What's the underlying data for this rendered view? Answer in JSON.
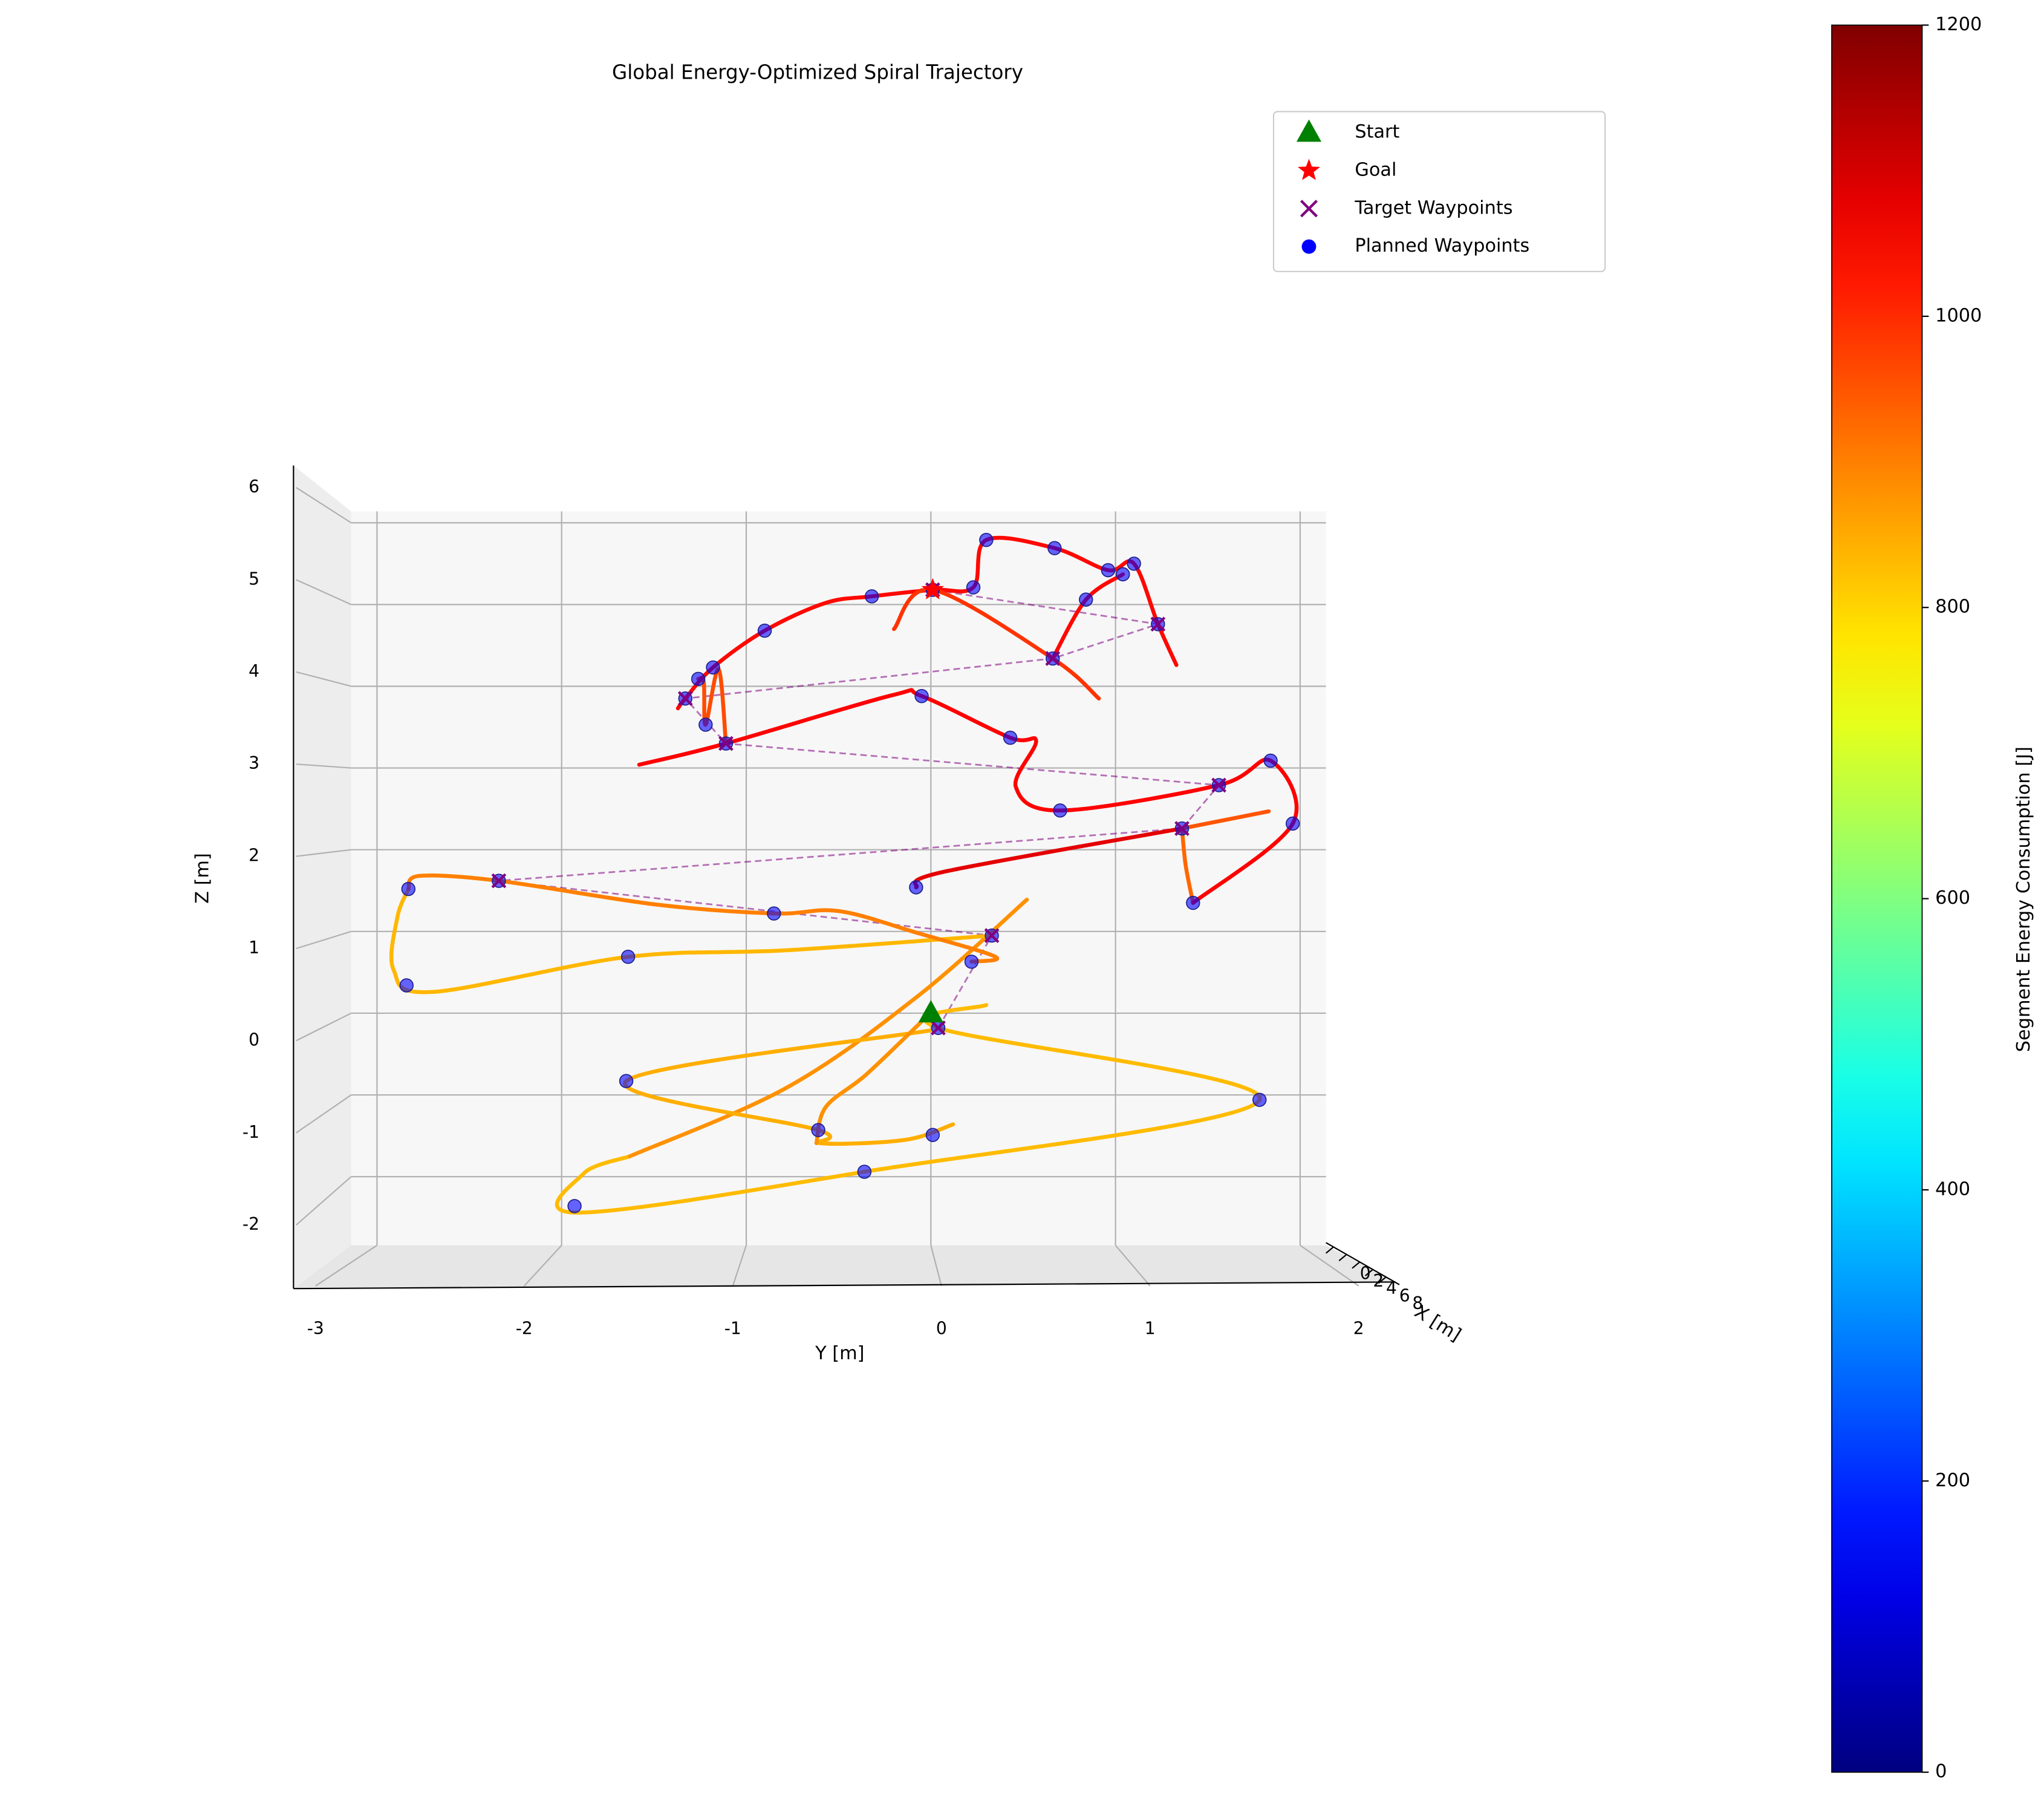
{
  "chart_data": {
    "type": "line3d",
    "title": "Global Energy-Optimized Spiral Trajectory",
    "xlabel": "X [m]",
    "ylabel": "Y [m]",
    "zlabel": "Z [m]",
    "xlim": [
      0,
      8
    ],
    "xticks": [
      0,
      2,
      4,
      6,
      8
    ],
    "ylim": [
      -3.14,
      2.14
    ],
    "yticks": [
      -3,
      -2,
      -1,
      0,
      1,
      2
    ],
    "zlim": [
      -2.84,
      6.14
    ],
    "zticks": [
      -2,
      -1,
      0,
      1,
      2,
      3,
      4,
      5,
      6
    ],
    "grid": true,
    "legend": "upper right",
    "colorbar": {
      "label": "Segment Energy Consumption [J]",
      "colormap": "jet",
      "lim": [
        0,
        1200
      ],
      "ticks": [
        0,
        200,
        400,
        600,
        800,
        1000,
        1200
      ]
    },
    "trajectory": [
      {
        "energy": 830,
        "y": [
          0.3,
          0.04,
          1.78,
          -0.36,
          -1.91,
          -1.88,
          -1.63
        ],
        "z": [
          0.1,
          -0.18,
          -1.06,
          -1.94,
          -2.44,
          -1.96,
          -1.75
        ]
      },
      {
        "energy": 880,
        "y": [
          -1.63,
          -0.78,
          -0.07,
          0.52
        ],
        "z": [
          -1.75,
          -0.91,
          0.21,
          1.39
        ]
      },
      {
        "energy": 845,
        "y": [
          0.12,
          -0.14,
          -0.6,
          -0.61,
          -1.65,
          0.0
        ],
        "z": [
          -1.36,
          -1.55,
          -1.59,
          -1.43,
          -0.83,
          -0.21
        ]
      },
      {
        "energy": 880,
        "y": [
          -0.04,
          -0.35,
          -0.57,
          -0.62
        ],
        "z": [
          -0.08,
          -0.75,
          -1.15,
          -1.59
        ]
      },
      {
        "energy": 835,
        "y": [
          0.33,
          -0.78,
          -1.64,
          -2.7,
          -2.91,
          -2.89,
          -2.83
        ],
        "z": [
          0.95,
          0.77,
          0.69,
          0.26,
          0.53,
          1.17,
          1.52
        ]
      },
      {
        "energy": 900,
        "y": [
          -2.83,
          -2.77,
          -2.34,
          -1.49,
          -0.85,
          -0.5,
          -0.07,
          0.35,
          0.22
        ],
        "z": [
          1.52,
          1.68,
          1.62,
          1.33,
          1.22,
          1.25,
          0.98,
          0.69,
          0.63
        ]
      },
      {
        "energy": 1080,
        "y": [
          -0.08,
          0.07,
          1.36
        ],
        "z": [
          1.54,
          1.73,
          2.26
        ]
      },
      {
        "energy": 950,
        "y": [
          1.36,
          1.83
        ],
        "z": [
          2.26,
          2.47
        ]
      },
      {
        "energy": 930,
        "y": [
          1.36,
          1.38,
          1.42
        ],
        "z": [
          2.26,
          1.81,
          1.35
        ]
      },
      {
        "energy": 1050,
        "y": [
          1.42,
          1.96,
          1.84,
          1.56,
          0.7,
          0.46,
          0.57,
          0.43,
          -0.05,
          -0.21,
          -1.11,
          -1.58
        ],
        "z": [
          1.35,
          2.32,
          3.09,
          2.79,
          2.48,
          2.77,
          3.33,
          3.37,
          3.88,
          3.89,
          3.3,
          3.04
        ]
      },
      {
        "energy": 960,
        "y": [
          -1.11,
          -1.15,
          -1.22,
          -1.23,
          -1.26
        ],
        "z": [
          3.3,
          4.21,
          3.53,
          4.05,
          4.09
        ]
      },
      {
        "energy": 1040,
        "y": [
          -1.37,
          -1.33,
          -1.18,
          -0.9,
          -0.57,
          -0.32,
          0.01,
          0.23,
          0.3,
          0.67,
          0.96,
          1.1,
          1.23,
          1.33
        ],
        "z": [
          3.73,
          3.85,
          4.23,
          4.68,
          5.02,
          5.1,
          5.18,
          5.21,
          5.79,
          5.69,
          5.42,
          5.5,
          4.76,
          4.26
        ]
      },
      {
        "energy": 990,
        "y": [
          -0.2,
          0.01,
          0.66,
          0.91
        ],
        "z": [
          4.7,
          5.18,
          4.34,
          3.85
        ]
      },
      {
        "energy": 1040,
        "y": [
          0.66,
          0.84,
          1.04
        ],
        "z": [
          4.34,
          5.06,
          5.37
        ]
      }
    ],
    "start": {
      "name": "Start",
      "color": "#008000",
      "y": 0.0,
      "z": 0.0
    },
    "goal": {
      "name": "Goal",
      "color": "#ff0000",
      "y": 0.01,
      "z": 5.18
    },
    "targets": {
      "name": "Target Waypoints",
      "color": "#800080",
      "y": [
        0.04,
        0.33,
        -2.34,
        1.36,
        1.56,
        -1.11,
        -1.33,
        0.66,
        1.23,
        0.01
      ],
      "z": [
        -0.18,
        0.95,
        1.62,
        2.26,
        2.79,
        3.3,
        3.85,
        4.34,
        4.76,
        5.18
      ]
    },
    "planned": {
      "name": "Planned Waypoints",
      "color": "#0000ff",
      "y": [
        0.3,
        0.67,
        0.96,
        1.04,
        1.1,
        0.84,
        1.23,
        0.23,
        0.01,
        -0.32,
        -0.9,
        -1.18,
        -1.26,
        -1.33,
        -1.22,
        -1.11,
        -0.05,
        0.43,
        0.66,
        1.56,
        1.84,
        1.96,
        0.7,
        1.36,
        1.42,
        -0.08,
        0.33,
        0.22,
        -0.85,
        -2.34,
        -2.83,
        -2.84,
        -1.64,
        0.04,
        -1.65,
        -0.61,
        0.01,
        -0.36,
        -1.93,
        1.78
      ],
      "z": [
        5.79,
        5.69,
        5.42,
        5.37,
        5.5,
        5.06,
        4.76,
        5.21,
        5.18,
        5.1,
        4.68,
        4.23,
        4.09,
        3.85,
        3.53,
        3.3,
        3.88,
        3.37,
        4.34,
        2.79,
        3.09,
        2.32,
        2.48,
        2.26,
        1.35,
        1.54,
        0.95,
        0.63,
        1.22,
        1.62,
        1.52,
        0.34,
        0.69,
        -0.18,
        -0.83,
        -1.43,
        -1.49,
        -1.94,
        -2.36,
        -1.06
      ]
    }
  }
}
